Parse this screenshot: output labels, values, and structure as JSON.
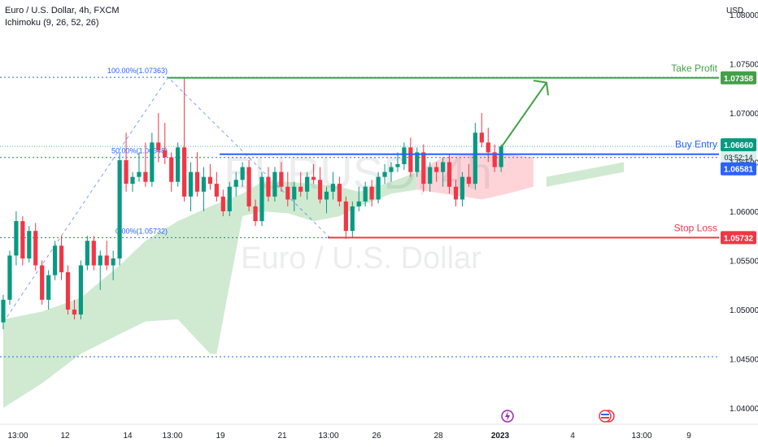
{
  "header": {
    "symbol": "Euro / U.S. Dollar, 4h, FXCM",
    "indicator": "Ichimoku (9, 26, 52, 26)"
  },
  "watermark": {
    "ticker": "EURUSD, 4h",
    "name": "Euro / U.S. Dollar"
  },
  "price_axis": {
    "unit": "USD",
    "ticks": [
      "1.08000",
      "1.07500",
      "1.07000",
      "1.06500",
      "1.06000",
      "1.05500",
      "1.05000",
      "1.04500",
      "1.04000"
    ]
  },
  "time_axis": {
    "ticks": [
      "13:00",
      "12",
      "14",
      "13:00",
      "19",
      "21",
      "13:00",
      "26",
      "28",
      "2023",
      "4",
      "13:00",
      "9"
    ]
  },
  "annotations": {
    "take_profit_label": "Take Profit",
    "take_profit_price": "1.07358",
    "buy_entry_label": "Buy Entry",
    "buy_entry_price": "1.06581",
    "stop_loss_label": "Stop Loss",
    "stop_loss_price": "1.05732",
    "current_price": "1.06660",
    "countdown": "03:52:14",
    "fib_100": "100.00%(1.07363)",
    "fib_50": "50.00%(1.06548)",
    "fib_0": "0.00%(1.05732)"
  },
  "colors": {
    "bull": "#089981",
    "bear": "#f23645",
    "take_profit": "#43a047",
    "buy_entry": "#2962ff",
    "stop_loss": "#f23645",
    "cloud_bull": "#c8e6c9",
    "cloud_bear": "#ffcdd2",
    "fib": "#2962ff"
  },
  "chart_data": {
    "type": "candlestick",
    "ylim": [
      1.0385,
      1.0815
    ],
    "grid": false,
    "levels": {
      "take_profit": 1.07358,
      "buy_entry": 1.06581,
      "stop_loss": 1.05732,
      "current": 1.0666
    },
    "fib_levels": [
      1.07363,
      1.06548,
      1.05732
    ],
    "candles": [
      [
        1.0487,
        1.0515,
        1.048,
        1.051
      ],
      [
        1.051,
        1.056,
        1.0505,
        1.0555
      ],
      [
        1.0555,
        1.06,
        1.0545,
        1.059
      ],
      [
        1.059,
        1.0595,
        1.0545,
        1.0552
      ],
      [
        1.0552,
        1.0585,
        1.0548,
        1.058
      ],
      [
        1.058,
        1.0588,
        1.054,
        1.0545
      ],
      [
        1.0545,
        1.055,
        1.0505,
        1.051
      ],
      [
        1.051,
        1.054,
        1.05,
        1.0535
      ],
      [
        1.0535,
        1.057,
        1.053,
        1.0565
      ],
      [
        1.0565,
        1.0575,
        1.053,
        1.0538
      ],
      [
        1.0538,
        1.0545,
        1.0495,
        1.05
      ],
      [
        1.05,
        1.051,
        1.049,
        1.0495
      ],
      [
        1.0495,
        1.055,
        1.049,
        1.0545
      ],
      [
        1.0545,
        1.0575,
        1.054,
        1.057
      ],
      [
        1.057,
        1.0575,
        1.054,
        1.0545
      ],
      [
        1.0545,
        1.056,
        1.052,
        1.0555
      ],
      [
        1.0555,
        1.057,
        1.054,
        1.0545
      ],
      [
        1.0545,
        1.056,
        1.053,
        1.0552
      ],
      [
        1.0552,
        1.066,
        1.0545,
        1.0652
      ],
      [
        1.0652,
        1.068,
        1.062,
        1.0628
      ],
      [
        1.0628,
        1.064,
        1.062,
        1.0635
      ],
      [
        1.0635,
        1.066,
        1.063,
        1.064
      ],
      [
        1.064,
        1.067,
        1.0625,
        1.063
      ],
      [
        1.063,
        1.068,
        1.0625,
        1.067
      ],
      [
        1.067,
        1.07,
        1.065,
        1.0662
      ],
      [
        1.0662,
        1.069,
        1.0648,
        1.0655
      ],
      [
        1.0655,
        1.066,
        1.062,
        1.063
      ],
      [
        1.063,
        1.067,
        1.0625,
        1.0665
      ],
      [
        1.0665,
        1.0736,
        1.061,
        1.0615
      ],
      [
        1.0615,
        1.065,
        1.06,
        1.064
      ],
      [
        1.064,
        1.066,
        1.0615,
        1.062
      ],
      [
        1.062,
        1.0645,
        1.06,
        1.0635
      ],
      [
        1.0635,
        1.0648,
        1.0622,
        1.0628
      ],
      [
        1.0628,
        1.064,
        1.061,
        1.0615
      ],
      [
        1.0615,
        1.0622,
        1.0595,
        1.06
      ],
      [
        1.06,
        1.063,
        1.0595,
        1.0625
      ],
      [
        1.0625,
        1.064,
        1.0615,
        1.0632
      ],
      [
        1.0632,
        1.065,
        1.0625,
        1.0645
      ],
      [
        1.0645,
        1.0652,
        1.06,
        1.0605
      ],
      [
        1.0605,
        1.0612,
        1.0585,
        1.059
      ],
      [
        1.059,
        1.064,
        1.0585,
        1.0635
      ],
      [
        1.0635,
        1.0645,
        1.061,
        1.0615
      ],
      [
        1.0615,
        1.0645,
        1.061,
        1.064
      ],
      [
        1.064,
        1.065,
        1.062,
        1.0625
      ],
      [
        1.0625,
        1.064,
        1.0605,
        1.0612
      ],
      [
        1.0612,
        1.063,
        1.06,
        1.0625
      ],
      [
        1.0625,
        1.064,
        1.0615,
        1.062
      ],
      [
        1.062,
        1.064,
        1.0612,
        1.0635
      ],
      [
        1.0635,
        1.0648,
        1.0628,
        1.0632
      ],
      [
        1.0632,
        1.0645,
        1.0608,
        1.0612
      ],
      [
        1.0612,
        1.0625,
        1.0598,
        1.062
      ],
      [
        1.062,
        1.064,
        1.0612,
        1.0628
      ],
      [
        1.0628,
        1.0635,
        1.0605,
        1.061
      ],
      [
        1.061,
        1.0615,
        1.0572,
        1.058
      ],
      [
        1.058,
        1.061,
        1.0573,
        1.0605
      ],
      [
        1.0605,
        1.0625,
        1.06,
        1.061
      ],
      [
        1.061,
        1.063,
        1.0605,
        1.0625
      ],
      [
        1.0625,
        1.0632,
        1.0605,
        1.0612
      ],
      [
        1.0612,
        1.064,
        1.0608,
        1.0635
      ],
      [
        1.0635,
        1.0648,
        1.0628,
        1.064
      ],
      [
        1.064,
        1.065,
        1.063,
        1.0645
      ],
      [
        1.0645,
        1.066,
        1.064,
        1.0648
      ],
      [
        1.0648,
        1.067,
        1.0642,
        1.0665
      ],
      [
        1.0665,
        1.0675,
        1.0635,
        1.064
      ],
      [
        1.064,
        1.0665,
        1.0635,
        1.066
      ],
      [
        1.066,
        1.0668,
        1.062,
        1.0628
      ],
      [
        1.0628,
        1.065,
        1.062,
        1.0645
      ],
      [
        1.0645,
        1.065,
        1.063,
        1.064
      ],
      [
        1.064,
        1.0655,
        1.0625,
        1.065
      ],
      [
        1.065,
        1.0658,
        1.0618,
        1.0625
      ],
      [
        1.0625,
        1.0632,
        1.0605,
        1.0612
      ],
      [
        1.0612,
        1.064,
        1.0605,
        1.0635
      ],
      [
        1.0635,
        1.0648,
        1.0625,
        1.0628
      ],
      [
        1.0628,
        1.069,
        1.0622,
        1.068
      ],
      [
        1.068,
        1.07,
        1.0665,
        1.067
      ],
      [
        1.067,
        1.0685,
        1.065,
        1.066
      ],
      [
        1.066,
        1.0668,
        1.064,
        1.0645
      ],
      [
        1.0645,
        1.0668,
        1.064,
        1.0666
      ]
    ],
    "cloud": {
      "bull_upper": [
        [
          1.049,
          0
        ],
        [
          1.0498,
          6
        ],
        [
          1.0512,
          12
        ],
        [
          1.0545,
          18
        ],
        [
          1.057,
          22
        ],
        [
          1.059,
          27
        ],
        [
          1.0605,
          32
        ],
        [
          1.0618,
          37
        ],
        [
          1.063,
          40
        ],
        [
          1.063,
          44
        ],
        [
          1.0628,
          48
        ],
        [
          1.0625,
          52
        ],
        [
          1.062,
          55
        ],
        [
          1.063,
          60
        ],
        [
          1.064,
          64
        ]
      ],
      "bull_lower": [
        [
          1.04,
          0
        ],
        [
          1.0425,
          6
        ],
        [
          1.0455,
          12
        ],
        [
          1.0475,
          18
        ],
        [
          1.0488,
          22
        ],
        [
          1.049,
          27
        ],
        [
          1.0455,
          32
        ],
        [
          1.0455,
          33
        ],
        [
          1.0595,
          37
        ],
        [
          1.06,
          40
        ],
        [
          1.0598,
          44
        ],
        [
          1.059,
          48
        ],
        [
          1.0595,
          52
        ],
        [
          1.0605,
          55
        ],
        [
          1.0618,
          60
        ],
        [
          1.0622,
          64
        ]
      ],
      "bear_upper": [
        [
          1.064,
          64
        ],
        [
          1.0655,
          68
        ],
        [
          1.066,
          74
        ],
        [
          1.0658,
          78
        ],
        [
          1.0655,
          82
        ]
      ],
      "bear_lower": [
        [
          1.0622,
          64
        ],
        [
          1.0618,
          68
        ],
        [
          1.0612,
          74
        ],
        [
          1.0618,
          78
        ],
        [
          1.0625,
          82
        ]
      ],
      "bull2_upper": [
        [
          1.0635,
          84
        ],
        [
          1.064,
          88
        ],
        [
          1.0645,
          92
        ],
        [
          1.065,
          96
        ]
      ],
      "bull2_lower": [
        [
          1.0625,
          84
        ],
        [
          1.063,
          88
        ],
        [
          1.0635,
          92
        ],
        [
          1.064,
          96
        ]
      ]
    }
  }
}
